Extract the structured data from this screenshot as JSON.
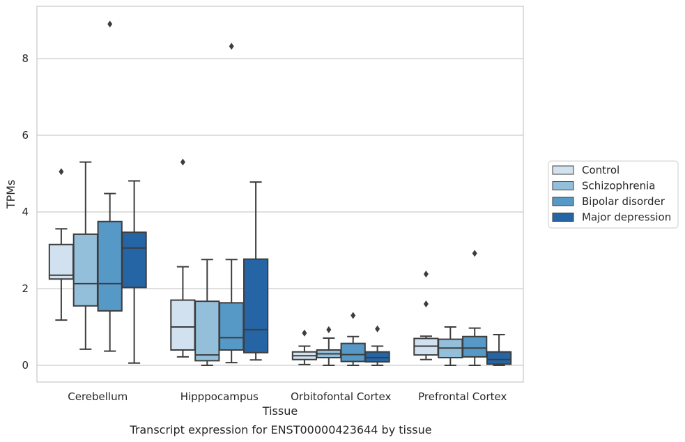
{
  "chart_data": {
    "type": "box",
    "caption": "Transcript expression for ENST00000423644 by tissue",
    "xlabel": "Tissue",
    "ylabel": "TPMs",
    "ylim": [
      -0.43,
      9.35
    ],
    "yticks": [
      0,
      2,
      4,
      6,
      8
    ],
    "grid": "horizontal",
    "legend_position": "right",
    "categories": [
      "Cerebellum",
      "Hipppocampus",
      "Orbitofontal Cortex",
      "Prefrontal Cortex"
    ],
    "series": [
      {
        "name": "Control",
        "color": "#d1e1f0",
        "boxes": [
          {
            "whislo": 1.18,
            "q1": 2.25,
            "med": 2.35,
            "q3": 3.15,
            "whishi": 3.56,
            "fliers": [
              5.05
            ]
          },
          {
            "whislo": 0.22,
            "q1": 0.4,
            "med": 1.0,
            "q3": 1.7,
            "whishi": 2.57,
            "fliers": [
              5.3
            ]
          },
          {
            "whislo": 0.02,
            "q1": 0.15,
            "med": 0.25,
            "q3": 0.35,
            "whishi": 0.5,
            "fliers": [
              0.84
            ]
          },
          {
            "whislo": 0.15,
            "q1": 0.27,
            "med": 0.5,
            "q3": 0.7,
            "whishi": 0.76,
            "fliers": [
              1.6,
              2.38
            ]
          }
        ]
      },
      {
        "name": "Schizophrenia",
        "color": "#94bfdb",
        "boxes": [
          {
            "whislo": 0.42,
            "q1": 1.55,
            "med": 2.13,
            "q3": 3.42,
            "whishi": 5.3,
            "fliers": []
          },
          {
            "whislo": 0.0,
            "q1": 0.12,
            "med": 0.27,
            "q3": 1.67,
            "whishi": 2.76,
            "fliers": []
          },
          {
            "whislo": 0.0,
            "q1": 0.2,
            "med": 0.3,
            "q3": 0.4,
            "whishi": 0.71,
            "fliers": [
              0.93
            ]
          },
          {
            "whislo": 0.0,
            "q1": 0.2,
            "med": 0.45,
            "q3": 0.68,
            "whishi": 1.0,
            "fliers": []
          }
        ]
      },
      {
        "name": "Bipolar disorder",
        "color": "#5698c6",
        "boxes": [
          {
            "whislo": 0.37,
            "q1": 1.42,
            "med": 2.13,
            "q3": 3.75,
            "whishi": 4.48,
            "fliers": [
              8.9
            ]
          },
          {
            "whislo": 0.07,
            "q1": 0.4,
            "med": 0.72,
            "q3": 1.63,
            "whishi": 2.76,
            "fliers": [
              8.32
            ]
          },
          {
            "whislo": 0.0,
            "q1": 0.1,
            "med": 0.28,
            "q3": 0.57,
            "whishi": 0.75,
            "fliers": [
              1.3
            ]
          },
          {
            "whislo": 0.0,
            "q1": 0.22,
            "med": 0.45,
            "q3": 0.75,
            "whishi": 0.97,
            "fliers": [
              2.92
            ]
          }
        ]
      },
      {
        "name": "Major depression",
        "color": "#2565a6",
        "boxes": [
          {
            "whislo": 0.06,
            "q1": 2.03,
            "med": 3.06,
            "q3": 3.47,
            "whishi": 4.81,
            "fliers": []
          },
          {
            "whislo": 0.14,
            "q1": 0.33,
            "med": 0.93,
            "q3": 2.77,
            "whishi": 4.78,
            "fliers": []
          },
          {
            "whislo": 0.0,
            "q1": 0.09,
            "med": 0.2,
            "q3": 0.35,
            "whishi": 0.5,
            "fliers": [
              0.95
            ]
          },
          {
            "whislo": 0.0,
            "q1": 0.03,
            "med": 0.15,
            "q3": 0.35,
            "whishi": 0.8,
            "fliers": []
          }
        ]
      }
    ]
  }
}
